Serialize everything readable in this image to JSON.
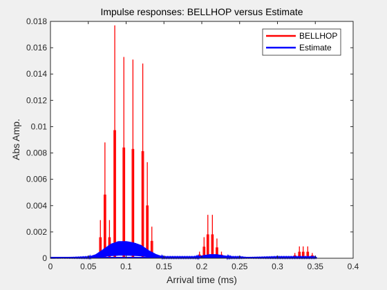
{
  "chart_data": {
    "type": "line",
    "title": "Impulse responses: BELLHOP versus Estimate",
    "xlabel": "Arrival time (ms)",
    "ylabel": "Abs Amp.",
    "xlim": [
      0,
      0.4
    ],
    "ylim": [
      0,
      0.018
    ],
    "x_ticks": [
      0,
      0.05,
      0.1,
      0.15,
      0.2,
      0.25,
      0.3,
      0.35,
      0.4
    ],
    "x_tick_labels": [
      "0",
      "0.05",
      "0.1",
      "0.15",
      "0.2",
      "0.25",
      "0.3",
      "0.35",
      "0.4"
    ],
    "y_ticks": [
      0,
      0.002,
      0.004,
      0.006,
      0.008,
      0.01,
      0.012,
      0.014,
      0.016,
      0.018
    ],
    "y_tick_labels": [
      "0",
      "0.002",
      "0.004",
      "0.006",
      "0.008",
      "0.01",
      "0.012",
      "0.014",
      "0.016",
      "0.018"
    ],
    "grid": false,
    "legend_position": "top-right",
    "series": [
      {
        "name": "BELLHOP",
        "color": "#ff0000",
        "style": "impulses",
        "x": [
          0.066,
          0.072,
          0.078,
          0.085,
          0.097,
          0.109,
          0.122,
          0.128,
          0.134,
          0.197,
          0.203,
          0.208,
          0.214,
          0.22,
          0.226,
          0.231,
          0.323,
          0.329,
          0.334,
          0.34,
          0.346
        ],
        "y": [
          0.0029,
          0.0088,
          0.0029,
          0.0177,
          0.0153,
          0.0151,
          0.0148,
          0.0073,
          0.0024,
          0.0005,
          0.0016,
          0.0033,
          0.0033,
          0.0015,
          0.0005,
          0.0002,
          0.0004,
          0.0009,
          0.0009,
          0.0009,
          0.0004
        ]
      },
      {
        "name": "Estimate",
        "color": "#0000ff",
        "style": "envelope",
        "x": [
          0,
          0.05,
          0.06,
          0.07,
          0.08,
          0.09,
          0.1,
          0.11,
          0.12,
          0.13,
          0.14,
          0.15,
          0.16,
          0.17,
          0.18,
          0.19,
          0.2,
          0.21,
          0.22,
          0.23,
          0.24,
          0.25,
          0.26,
          0.3,
          0.31,
          0.32,
          0.33,
          0.34,
          0.35,
          0.36,
          0.4
        ],
        "y": [
          0,
          0.0001,
          0.0003,
          0.0007,
          0.0011,
          0.0013,
          0.0013,
          0.0012,
          0.001,
          0.0006,
          0.0003,
          0.0001,
          0.0001,
          0.0001,
          0.0001,
          0.0001,
          0.0002,
          0.0003,
          0.0003,
          0.0002,
          0.0001,
          0.0001,
          5e-05,
          0.0001,
          0.0001,
          0.0001,
          0.0001,
          0.0001,
          0.0001,
          5e-05,
          0
        ]
      }
    ]
  }
}
